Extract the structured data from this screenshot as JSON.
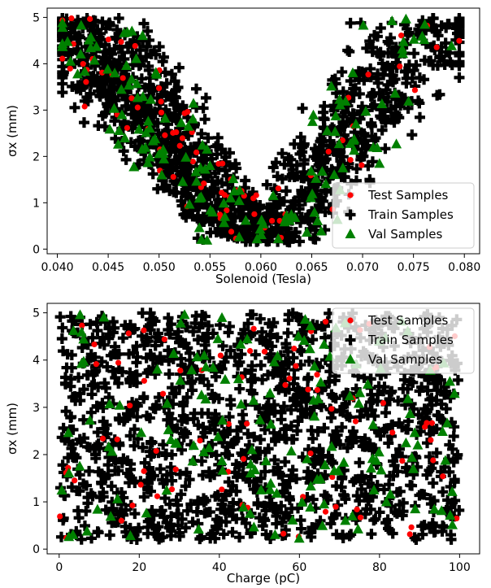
{
  "chart_data": [
    {
      "type": "scatter",
      "title": "",
      "xlabel": "Solenoid (Tesla)",
      "ylabel": "σx (mm)",
      "xlim": [
        0.039,
        0.0815
      ],
      "ylim": [
        -0.1,
        5.2
      ],
      "xticks": [
        "0.040",
        "0.045",
        "0.050",
        "0.055",
        "0.060",
        "0.065",
        "0.070",
        "0.075",
        "0.080"
      ],
      "yticks": [
        "0",
        "1",
        "2",
        "3",
        "4",
        "5"
      ],
      "legend_placement": "bottom-right",
      "grid": false,
      "series": [
        {
          "name": "Test Samples",
          "marker": "circle",
          "color": "#ff0000"
        },
        {
          "name": "Train Samples",
          "marker": "plus",
          "color": "#000000"
        },
        {
          "name": "Val Samples",
          "marker": "triangle",
          "color": "#008000"
        }
      ],
      "generator": {
        "kind": "v",
        "n_train": 1300,
        "n_val": 150,
        "n_test": 80,
        "seed": 11
      }
    },
    {
      "type": "scatter",
      "title": "",
      "xlabel": "Charge (pC)",
      "ylabel": "σx (mm)",
      "xlim": [
        -3,
        105
      ],
      "ylim": [
        -0.1,
        5.2
      ],
      "xticks": [
        "0",
        "20",
        "40",
        "60",
        "80",
        "100"
      ],
      "yticks": [
        "0",
        "1",
        "2",
        "3",
        "4",
        "5"
      ],
      "legend_placement": "top-right",
      "grid": false,
      "series": [
        {
          "name": "Test Samples",
          "marker": "circle",
          "color": "#ff0000"
        },
        {
          "name": "Train Samples",
          "marker": "plus",
          "color": "#000000"
        },
        {
          "name": "Val Samples",
          "marker": "triangle",
          "color": "#008000"
        }
      ],
      "generator": {
        "kind": "uniform",
        "n_train": 1300,
        "n_val": 150,
        "n_test": 80,
        "seed": 29
      }
    }
  ]
}
